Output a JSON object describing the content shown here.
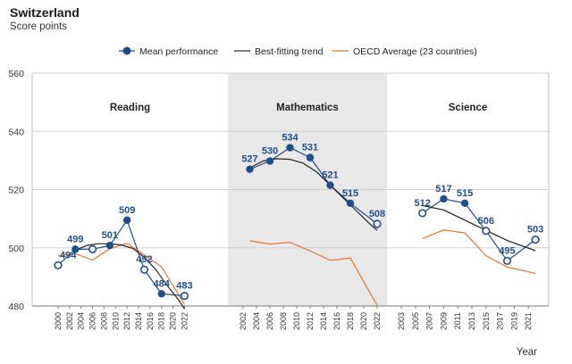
{
  "header": {
    "title": "Switzerland",
    "subtitle": "Score points"
  },
  "legend": [
    {
      "label": "Mean performance",
      "color": "#1f4e8c",
      "marker": "circle"
    },
    {
      "label": "Best-fitting trend",
      "color": "#333333",
      "marker": "line"
    },
    {
      "label": "OECD Average (23 countries)",
      "color": "#e8732a",
      "marker": "line"
    }
  ],
  "chart_data": {
    "type": "line",
    "title": "Switzerland",
    "ylabel": "Score points",
    "xlabel": "Year",
    "ylim": [
      480,
      560
    ],
    "yticks": [
      480,
      500,
      520,
      540,
      560
    ],
    "panels": [
      {
        "name": "Reading",
        "shaded": false,
        "x": [
          "2000",
          "2002",
          "2004",
          "2006",
          "2008",
          "2010",
          "2012",
          "2014",
          "2016",
          "2018",
          "2020",
          "2022"
        ],
        "mean": [
          {
            "year": "2000",
            "value": 494,
            "label": "494",
            "hollow": true
          },
          {
            "year": "2003",
            "value": 499.5,
            "label": "499",
            "hollow": false
          },
          {
            "year": "2006",
            "value": 499.5,
            "label": "",
            "hollow": true
          },
          {
            "year": "2009",
            "value": 500.8,
            "label": "501",
            "hollow": false
          },
          {
            "year": "2012",
            "value": 509.5,
            "label": "509",
            "hollow": false
          },
          {
            "year": "2015",
            "value": 492.5,
            "label": "492",
            "hollow": true
          },
          {
            "year": "2018",
            "value": 484.2,
            "label": "484",
            "hollow": false
          },
          {
            "year": "2022",
            "value": 483.5,
            "label": "483",
            "hollow": true
          }
        ],
        "trend": [
          [
            2003,
            499.2
          ],
          [
            2005,
            500.8
          ],
          [
            2007,
            501.4
          ],
          [
            2009,
            501.4
          ],
          [
            2011,
            501
          ],
          [
            2013,
            499.8
          ],
          [
            2015,
            496.8
          ],
          [
            2017,
            492.5
          ],
          [
            2019,
            487
          ],
          [
            2021,
            482
          ],
          [
            2022,
            479
          ]
        ],
        "oecd": [
          [
            2003,
            498
          ],
          [
            2006,
            495.8
          ],
          [
            2009,
            499.7
          ],
          [
            2012,
            501.5
          ],
          [
            2015,
            497.6
          ],
          [
            2018,
            493.5
          ],
          [
            2022,
            480.5
          ]
        ],
        "oecd_extra": [
          [
            2000,
            497.2
          ],
          [
            2003,
            498
          ]
        ]
      },
      {
        "name": "Mathematics",
        "shaded": true,
        "x": [
          "2002",
          "2004",
          "2006",
          "2008",
          "2010",
          "2012",
          "2014",
          "2016",
          "2018",
          "2020",
          "2022"
        ],
        "mean": [
          {
            "year": "2003",
            "value": 527,
            "label": "527",
            "hollow": false
          },
          {
            "year": "2006",
            "value": 529.8,
            "label": "530",
            "hollow": false
          },
          {
            "year": "2009",
            "value": 534.4,
            "label": "534",
            "hollow": false
          },
          {
            "year": "2012",
            "value": 531,
            "label": "531",
            "hollow": false
          },
          {
            "year": "2015",
            "value": 521.5,
            "label": "521",
            "hollow": false
          },
          {
            "year": "2018",
            "value": 515.3,
            "label": "515",
            "hollow": false
          },
          {
            "year": "2022",
            "value": 508.2,
            "label": "508",
            "hollow": true
          }
        ],
        "trend": [
          [
            2003,
            527.5
          ],
          [
            2005,
            529.8
          ],
          [
            2007,
            530.6
          ],
          [
            2009,
            530.4
          ],
          [
            2011,
            529
          ],
          [
            2013,
            526
          ],
          [
            2015,
            521.5
          ],
          [
            2017,
            517
          ],
          [
            2019,
            512.5
          ],
          [
            2021,
            508
          ],
          [
            2022,
            506
          ]
        ],
        "oecd": [
          [
            2003,
            502.4
          ],
          [
            2006,
            501.3
          ],
          [
            2009,
            501.9
          ],
          [
            2012,
            498.9
          ],
          [
            2015,
            495.7
          ],
          [
            2018,
            496.5
          ],
          [
            2022,
            480.2
          ]
        ]
      },
      {
        "name": "Science",
        "shaded": false,
        "x": [
          "2003",
          "2005",
          "2007",
          "2009",
          "2011",
          "2013",
          "2015",
          "2017",
          "2019",
          "2021"
        ],
        "mean": [
          {
            "year": "2006",
            "value": 511.9,
            "label": "512",
            "hollow": true
          },
          {
            "year": "2009",
            "value": 516.8,
            "label": "517",
            "hollow": false
          },
          {
            "year": "2012",
            "value": 515.3,
            "label": "515",
            "hollow": false
          },
          {
            "year": "2015",
            "value": 505.8,
            "label": "506",
            "hollow": true
          },
          {
            "year": "2018",
            "value": 495.5,
            "label": "495",
            "hollow": true
          },
          {
            "year": "2022",
            "value": 502.8,
            "label": "503",
            "hollow": true
          }
        ],
        "trend": [
          [
            2006,
            514.5
          ],
          [
            2009,
            513
          ],
          [
            2012,
            509.5
          ],
          [
            2015,
            506
          ],
          [
            2018,
            502.5
          ],
          [
            2022,
            499
          ]
        ],
        "oecd": [
          [
            2006,
            503.2
          ],
          [
            2009,
            506.1
          ],
          [
            2012,
            505.1
          ],
          [
            2015,
            497.3
          ],
          [
            2018,
            493.4
          ],
          [
            2022,
            491.2
          ]
        ]
      }
    ]
  }
}
